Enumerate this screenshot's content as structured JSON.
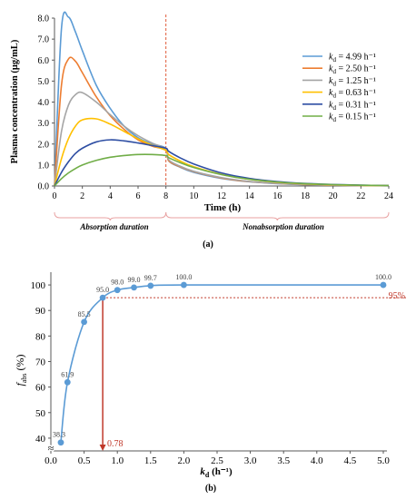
{
  "colors": {
    "axis": "#595959",
    "grid_dash": "#d9d9d9",
    "marker_line": "#e05c3a",
    "duration_bracket": "#e8a0a0",
    "curve_b": "#5b9bd5",
    "threshold": "#c0392b"
  },
  "panel_a": {
    "caption": "(a)",
    "marker_time": 8,
    "duration_labels": {
      "absorption": "Absorption duration",
      "nonabsorption": "Nonabsorption duration"
    }
  },
  "panel_b": {
    "caption": "(b)",
    "threshold_label": "95%",
    "threshold_value": 95,
    "kd_at_threshold": 0.78,
    "kd_label": "0.78"
  },
  "chart_data": [
    {
      "type": "line",
      "xlabel": "Time (h)",
      "ylabel": "Plasma concentration (µg/mL)",
      "xlim": [
        0,
        24
      ],
      "ylim": [
        0,
        8.0
      ],
      "x_ticks": [
        0,
        2,
        4,
        6,
        8,
        10,
        12,
        14,
        16,
        18,
        20,
        22,
        24
      ],
      "y_ticks": [
        0.0,
        1.0,
        2.0,
        3.0,
        4.0,
        5.0,
        6.0,
        7.0,
        8.0
      ],
      "y_tick_labels": [
        "0.0",
        "1.0",
        "2.0",
        "3.0",
        "4.0",
        "5.0",
        "6.0",
        "7.0",
        "8.0"
      ],
      "legend_position": "right",
      "x": [
        0,
        0.5,
        1,
        1.5,
        2,
        3,
        4,
        5,
        6,
        7,
        8,
        8.2,
        9,
        10,
        12,
        14,
        16,
        18,
        20,
        22,
        24
      ],
      "series": [
        {
          "legend_symbol": "k",
          "legend_sub": "d",
          "legend_value": " = 4.99 h⁻¹",
          "color": "#5b9bd5",
          "values": [
            0,
            7.5,
            8.05,
            7.35,
            6.45,
            4.8,
            3.7,
            2.85,
            2.3,
            2.0,
            1.8,
            1.2,
            0.9,
            0.65,
            0.36,
            0.2,
            0.11,
            0.06,
            0.035,
            0.02,
            0.01
          ]
        },
        {
          "legend_symbol": "k",
          "legend_sub": "d",
          "legend_value": " = 2.50 h⁻¹",
          "color": "#ed7d31",
          "values": [
            0,
            4.8,
            6.05,
            5.95,
            5.4,
            4.25,
            3.35,
            2.7,
            2.2,
            1.9,
            1.7,
            1.2,
            0.92,
            0.68,
            0.38,
            0.21,
            0.12,
            0.065,
            0.036,
            0.02,
            0.011
          ]
        },
        {
          "legend_symbol": "k",
          "legend_sub": "d",
          "legend_value": " = 1.25 h⁻¹",
          "color": "#a5a5a5",
          "values": [
            0,
            2.6,
            3.85,
            4.35,
            4.45,
            4.0,
            3.4,
            2.85,
            2.4,
            2.05,
            1.75,
            1.25,
            0.95,
            0.7,
            0.4,
            0.22,
            0.125,
            0.07,
            0.04,
            0.022,
            0.012
          ]
        },
        {
          "legend_symbol": "k",
          "legend_sub": "d",
          "legend_value": " = 0.63 h⁻¹",
          "color": "#ffc000",
          "values": [
            0,
            1.3,
            2.25,
            2.85,
            3.15,
            3.2,
            2.95,
            2.6,
            2.25,
            1.95,
            1.7,
            1.5,
            1.2,
            0.92,
            0.55,
            0.32,
            0.18,
            0.1,
            0.055,
            0.03,
            0.017
          ]
        },
        {
          "legend_symbol": "k",
          "legend_sub": "d",
          "legend_value": " = 0.31 h⁻¹",
          "color": "#2e4ea3",
          "values": [
            0,
            0.65,
            1.15,
            1.55,
            1.8,
            2.1,
            2.2,
            2.15,
            2.05,
            1.93,
            1.8,
            1.65,
            1.35,
            1.05,
            0.62,
            0.36,
            0.21,
            0.12,
            0.07,
            0.04,
            0.022
          ]
        },
        {
          "legend_symbol": "k",
          "legend_sub": "d",
          "legend_value": " = 0.15 h⁻¹",
          "color": "#70ad47",
          "values": [
            0,
            0.35,
            0.62,
            0.83,
            1.0,
            1.22,
            1.37,
            1.45,
            1.5,
            1.5,
            1.45,
            1.35,
            1.12,
            0.88,
            0.54,
            0.32,
            0.19,
            0.11,
            0.065,
            0.037,
            0.021
          ]
        }
      ]
    },
    {
      "type": "line",
      "xlabel_symbol": "k",
      "xlabel_sub": "d",
      "xlabel_unit": " (h⁻¹)",
      "ylabel_symbol": "f",
      "ylabel_sub": "abs",
      "ylabel_unit": " (%)",
      "xlim": [
        0,
        5.0
      ],
      "ylim": [
        35,
        105
      ],
      "x_ticks": [
        0.0,
        0.5,
        1.0,
        1.5,
        2.0,
        2.5,
        3.0,
        3.5,
        4.0,
        4.5,
        5.0
      ],
      "x_tick_labels": [
        "0.0",
        "0.5",
        "1.0",
        "1.5",
        "2.0",
        "2.5",
        "3.0",
        "3.5",
        "4.0",
        "4.5",
        "5.0"
      ],
      "y_ticks": [
        40,
        50,
        60,
        70,
        80,
        90,
        100
      ],
      "y_tick_labels": [
        "40",
        "50",
        "60",
        "70",
        "80",
        "90",
        "100"
      ],
      "axis_break": "≈",
      "points": [
        {
          "x": 0.15,
          "y": 38.3,
          "label": "38.3"
        },
        {
          "x": 0.25,
          "y": 61.9,
          "label": "61.9"
        },
        {
          "x": 0.5,
          "y": 85.5,
          "label": "85.5"
        },
        {
          "x": 0.78,
          "y": 95.0,
          "label": "95.0"
        },
        {
          "x": 1.0,
          "y": 98.0,
          "label": "98.0"
        },
        {
          "x": 1.25,
          "y": 99.0,
          "label": "99.0"
        },
        {
          "x": 1.5,
          "y": 99.7,
          "label": "99.7"
        },
        {
          "x": 2.0,
          "y": 100.0,
          "label": "100.0"
        },
        {
          "x": 5.0,
          "y": 100.0,
          "label": "100.0"
        }
      ]
    }
  ]
}
